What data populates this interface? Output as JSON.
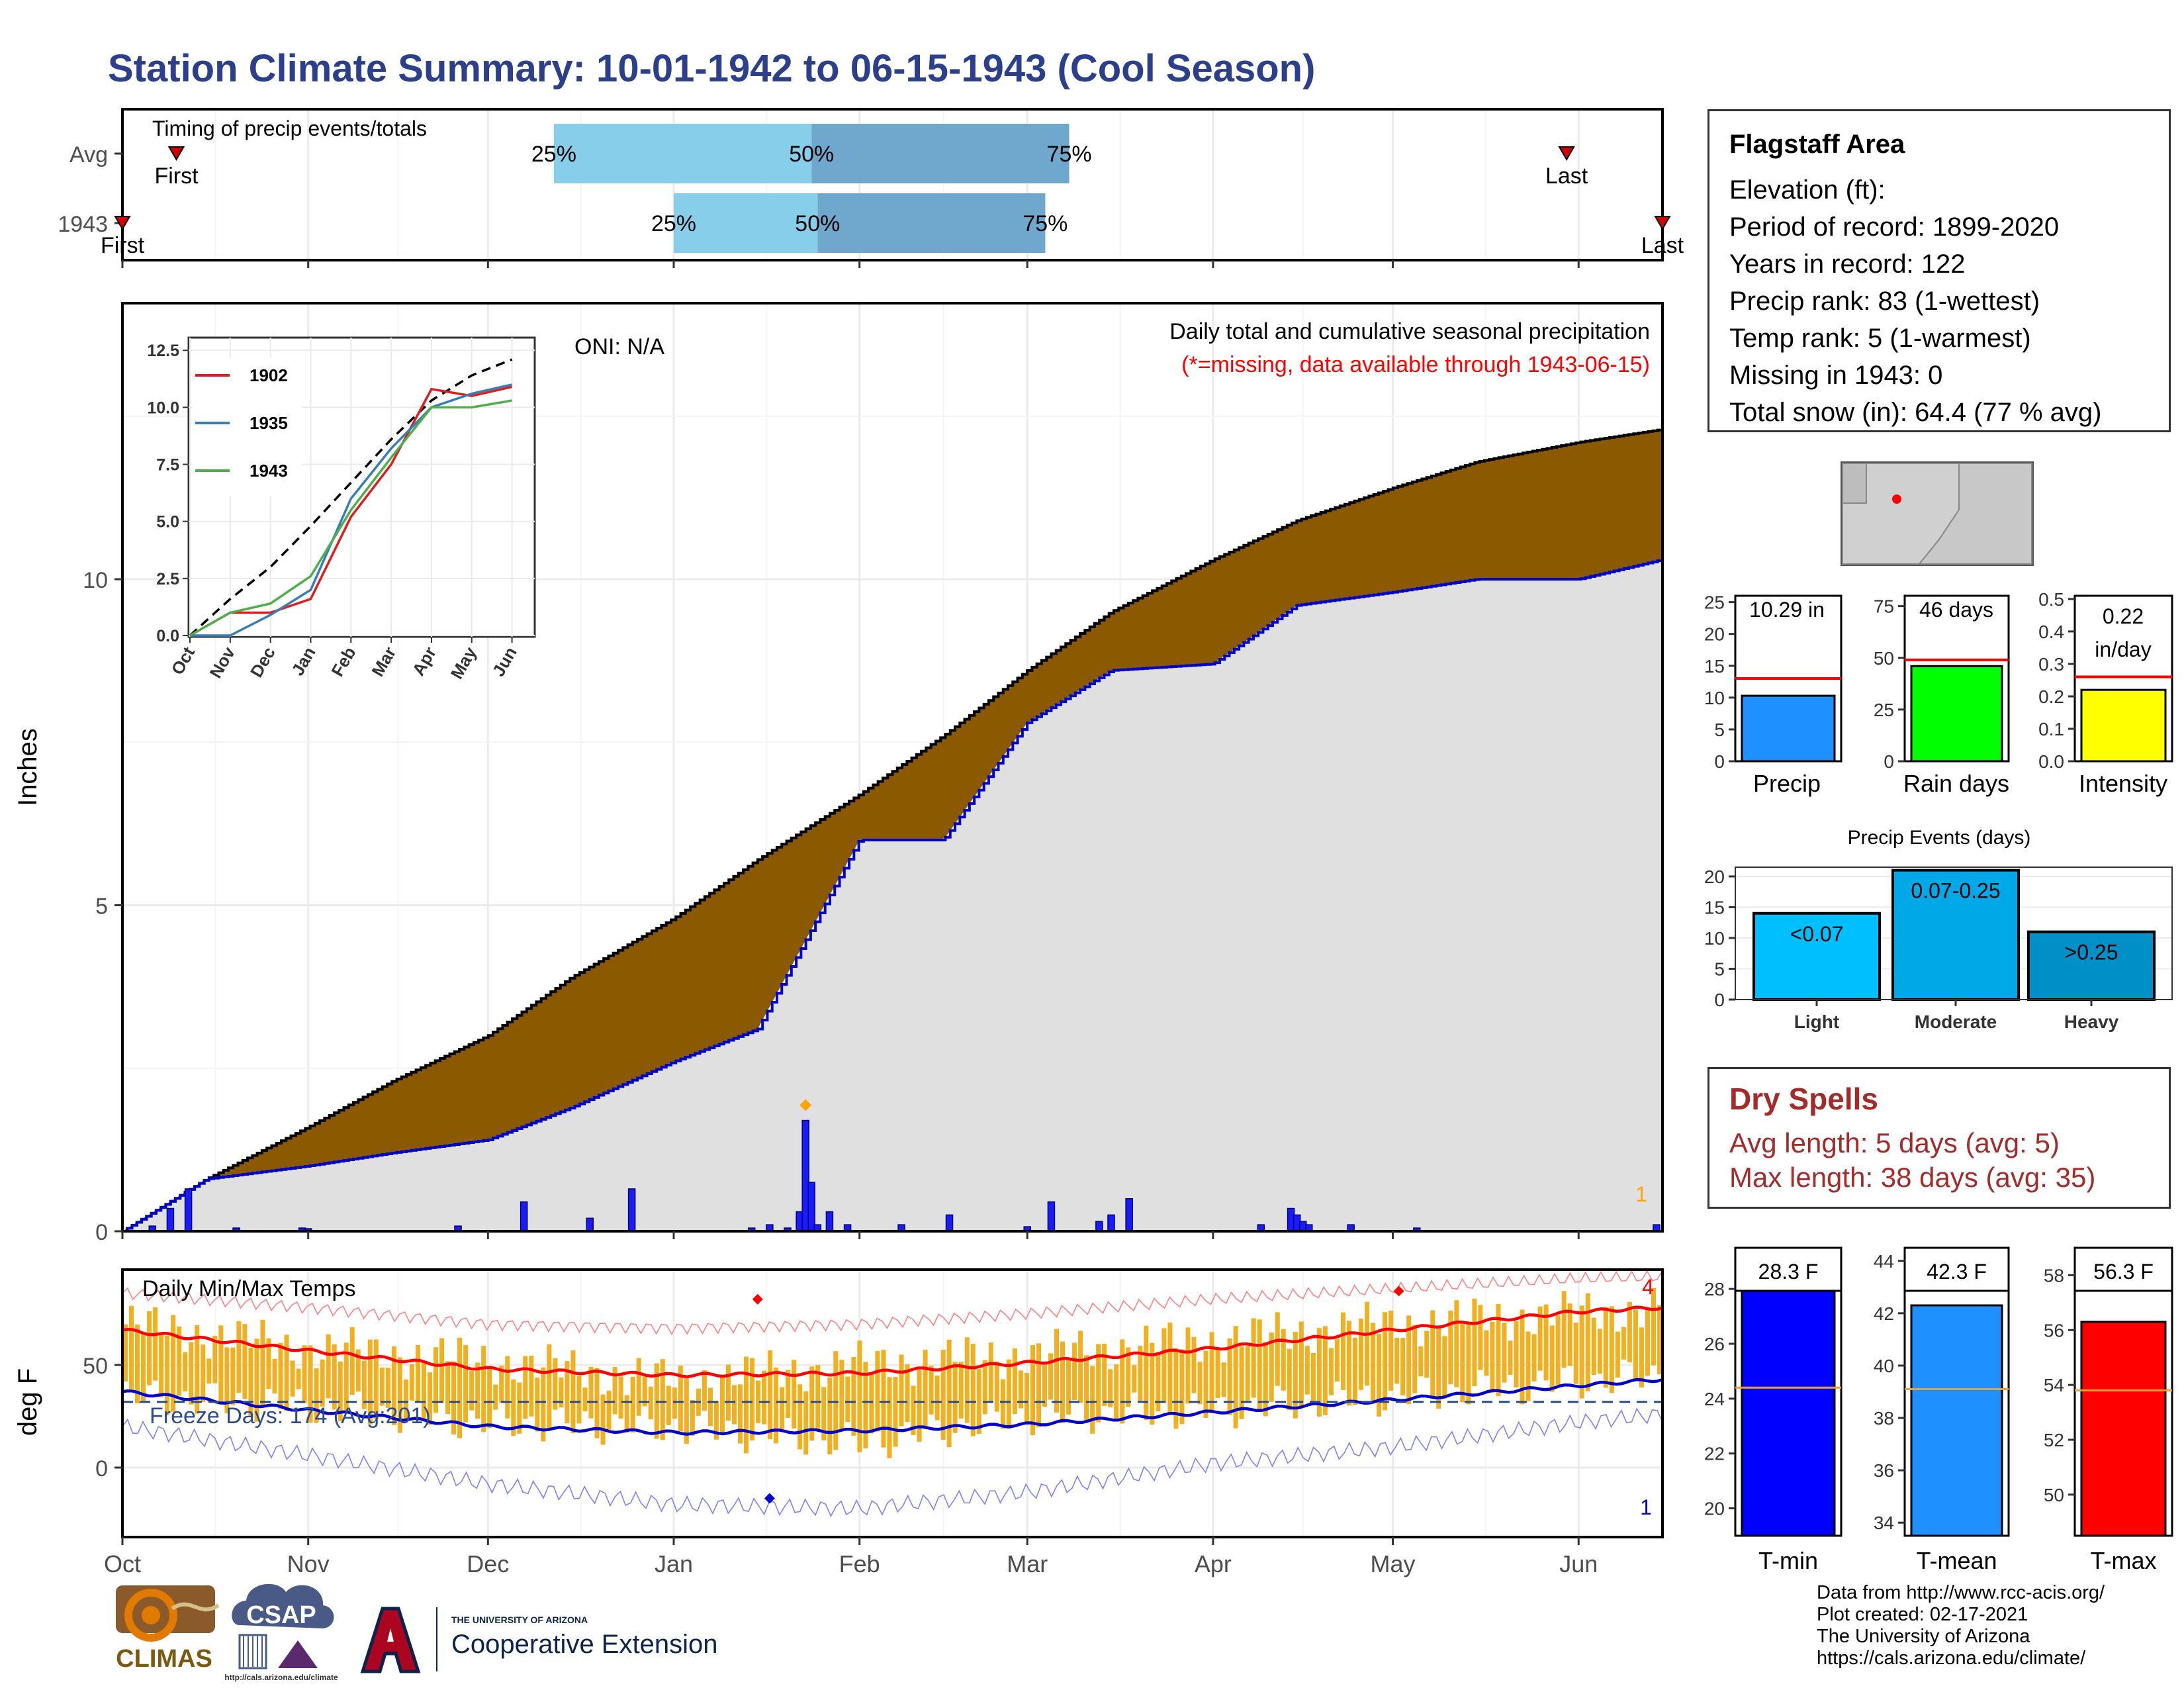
{
  "title": "Station Climate Summary: 10-01-1942 to 06-15-1943 (Cool Season)",
  "timing_panel": {
    "label": "Timing of precip events/totals",
    "rows": [
      {
        "name": "Avg",
        "first_label": "First",
        "last_label": "Last",
        "p25": "25%",
        "p50": "50%",
        "p75": "75%"
      },
      {
        "name": "1943",
        "first_label": "First",
        "last_label": "Last",
        "p25": "25%",
        "p50": "50%",
        "p75": "75%"
      }
    ]
  },
  "precip_panel": {
    "ylabel": "Inches",
    "heading": "Daily total and cumulative seasonal precipitation",
    "note": "(*=missing, data available through 1943-06-15)",
    "oni": "ONI: N/A",
    "corner_count": "1",
    "y_ticks": [
      "0",
      "5",
      "10"
    ]
  },
  "inset": {
    "y_ticks": [
      "0.0",
      "2.5",
      "5.0",
      "7.5",
      "10.0",
      "12.5"
    ],
    "x_ticks": [
      "Oct",
      "Nov",
      "Dec",
      "Jan",
      "Feb",
      "Mar",
      "Apr",
      "May",
      "Jun"
    ],
    "legend": [
      "1902",
      "1935",
      "1943"
    ]
  },
  "temp_panel": {
    "label": "Daily Min/Max Temps",
    "ylabel": "deg F",
    "freeze": "Freeze Days: 174 (Avg:201)",
    "max_count": "4",
    "min_count": "1",
    "y_ticks": [
      "0",
      "50"
    ]
  },
  "x_axis": [
    "Oct",
    "Nov",
    "Dec",
    "Jan",
    "Feb",
    "Mar",
    "Apr",
    "May",
    "Jun"
  ],
  "station": {
    "name": "Flagstaff Area",
    "lines": [
      "Elevation (ft):",
      "Period of record: 1899-2020",
      "Years in record: 122",
      "Precip rank: 83 (1-wettest)",
      "Temp rank: 5 (1-warmest)",
      "Missing in 1943: 0",
      "Total snow (in): 64.4 (77 % avg)"
    ]
  },
  "season_bars": {
    "precip": {
      "label": "Precip",
      "value_label": "10.29 in",
      "ticks": [
        "0",
        "5",
        "10",
        "15",
        "20",
        "25"
      ]
    },
    "rain_days": {
      "label": "Rain days",
      "value_label": "46 days",
      "ticks": [
        "0",
        "25",
        "50",
        "75"
      ]
    },
    "intensity": {
      "label": "Intensity",
      "value_label_1": "0.22",
      "value_label_2": "in/day",
      "ticks": [
        "0.0",
        "0.1",
        "0.2",
        "0.3",
        "0.4",
        "0.5"
      ]
    }
  },
  "events": {
    "title": "Precip Events (days)",
    "ticks": [
      "0",
      "5",
      "10",
      "15",
      "20"
    ],
    "categories": [
      "Light",
      "Moderate",
      "Heavy"
    ],
    "bar_labels": [
      "<0.07",
      "0.07-0.25",
      ">0.25"
    ]
  },
  "dry_spells": {
    "title": "Dry Spells",
    "avg": "Avg length: 5 days (avg: 5)",
    "max": "Max length: 38 days (avg: 35)"
  },
  "temp_bars": {
    "tmin": {
      "label": "T-min",
      "value_label": "28.3 F",
      "ticks": [
        "20",
        "22",
        "24",
        "26",
        "28"
      ]
    },
    "tmean": {
      "label": "T-mean",
      "value_label": "42.3 F",
      "ticks": [
        "34",
        "36",
        "38",
        "40",
        "42",
        "44"
      ]
    },
    "tmax": {
      "label": "T-max",
      "value_label": "56.3 F",
      "ticks": [
        "50",
        "52",
        "54",
        "56",
        "58"
      ]
    }
  },
  "credits": [
    "Data from http://www.rcc-acis.org/",
    "Plot created: 02-17-2021",
    "The University of Arizona",
    "https://cals.arizona.edu/climate/"
  ],
  "logos": {
    "climas": "CLIMAS",
    "csap": "CSAP",
    "csap_url": "http://cals.arizona.edu/climate",
    "ua_small": "THE UNIVERSITY OF ARIZONA",
    "ua_big": "Cooperative Extension"
  },
  "colors": {
    "title": "#2b3f8c",
    "cumulative_fill": "#8b5a00",
    "avg_fill": "#e0e0e0",
    "precip_line": "#0000cc",
    "tmax_line": "#ff0000",
    "tmin_line": "#0000cc",
    "temp_bars": "#f0b020",
    "q_light": "#87ceeb",
    "q_dark": "#6fa8cc",
    "precip_bar": "#1e90ff",
    "rain_bar": "#00ff00",
    "intensity_bar": "#ffff00",
    "events_light": "#00bfff",
    "events_mod": "#00a8e8",
    "events_heavy": "#0090c8",
    "dry": "#a52a2a"
  },
  "chart_data": [
    {
      "type": "bar",
      "name": "timing",
      "categories": [
        "Avg",
        "1943"
      ],
      "series": [
        {
          "name": "First",
          "values": [
            "1942-10-10",
            "1942-10-01"
          ]
        },
        {
          "name": "25%",
          "values": [
            "1942-12-12",
            "1943-01-01"
          ]
        },
        {
          "name": "50%",
          "values": [
            "1943-01-24",
            "1943-01-25"
          ]
        },
        {
          "name": "75%",
          "values": [
            "1943-03-08",
            "1943-03-04"
          ]
        },
        {
          "name": "Last",
          "values": [
            "1943-05-30",
            "1943-06-15"
          ]
        }
      ]
    },
    {
      "type": "area",
      "name": "cumulative_precip",
      "ylabel": "Inches",
      "ylim": [
        0,
        14
      ],
      "x_dates": [
        "1942-10-01",
        "1942-10-15",
        "1942-11-01",
        "1942-11-15",
        "1942-12-01",
        "1942-12-15",
        "1943-01-01",
        "1943-01-15",
        "1943-02-01",
        "1943-02-15",
        "1943-03-01",
        "1943-03-15",
        "1943-04-01",
        "1943-04-15",
        "1943-05-01",
        "1943-05-15",
        "1943-06-01",
        "1943-06-15"
      ],
      "series": [
        {
          "name": "avg cumulative",
          "values": [
            0.0,
            0.8,
            1.6,
            2.3,
            3.0,
            3.9,
            4.8,
            5.7,
            6.7,
            7.6,
            8.6,
            9.5,
            10.3,
            10.9,
            11.4,
            11.8,
            12.1,
            12.3
          ]
        },
        {
          "name": "1943 cumulative",
          "values": [
            0.0,
            0.8,
            1.0,
            1.2,
            1.4,
            1.9,
            2.6,
            3.1,
            6.0,
            6.0,
            7.8,
            8.6,
            8.7,
            9.6,
            9.8,
            10.0,
            10.0,
            10.3
          ]
        }
      ]
    },
    {
      "type": "bar",
      "name": "daily_precip",
      "ylabel": "Inches",
      "x": [
        "1942-10-06",
        "1942-10-09",
        "1942-10-12",
        "1942-10-20",
        "1942-10-31",
        "1942-11-01",
        "1942-11-26",
        "1942-12-07",
        "1942-12-18",
        "1942-12-25",
        "1943-01-14",
        "1943-01-17",
        "1943-01-20",
        "1943-01-22",
        "1943-01-23",
        "1943-01-24",
        "1943-01-25",
        "1943-01-27",
        "1943-01-30",
        "1943-02-08",
        "1943-02-16",
        "1943-03-01",
        "1943-03-05",
        "1943-03-13",
        "1943-03-15",
        "1943-03-18",
        "1943-04-09",
        "1943-04-14",
        "1943-04-15",
        "1943-04-16",
        "1943-04-17",
        "1943-04-24",
        "1943-05-05",
        "1943-06-14"
      ],
      "values": [
        0.08,
        0.35,
        0.65,
        0.05,
        0.05,
        0.04,
        0.08,
        0.45,
        0.2,
        0.65,
        0.05,
        0.1,
        0.05,
        0.3,
        1.7,
        0.75,
        0.1,
        0.3,
        0.1,
        0.1,
        0.25,
        0.07,
        0.45,
        0.15,
        0.25,
        0.5,
        0.1,
        0.35,
        0.25,
        0.15,
        0.1,
        0.1,
        0.05,
        0.1
      ]
    },
    {
      "type": "line",
      "name": "inset_cumulative",
      "x": [
        "Oct",
        "Nov",
        "Dec",
        "Jan",
        "Feb",
        "Mar",
        "Apr",
        "May",
        "Jun"
      ],
      "ylim": [
        0,
        13
      ],
      "series": [
        {
          "name": "avg",
          "values": [
            0.0,
            1.6,
            3.0,
            4.8,
            6.7,
            8.6,
            10.3,
            11.4,
            12.1
          ]
        },
        {
          "name": "1902",
          "values": [
            0.0,
            1.0,
            1.0,
            1.6,
            5.2,
            7.5,
            10.8,
            10.5,
            10.9
          ]
        },
        {
          "name": "1935",
          "values": [
            0.0,
            0.0,
            0.9,
            2.0,
            6.0,
            8.2,
            10.0,
            10.6,
            11.0
          ]
        },
        {
          "name": "1943",
          "values": [
            0.0,
            1.0,
            1.4,
            2.6,
            5.5,
            7.8,
            10.0,
            10.0,
            10.3
          ]
        }
      ]
    },
    {
      "type": "line",
      "name": "daily_temps",
      "ylabel": "deg F",
      "ylim": [
        -30,
        95
      ],
      "x_dates": [
        "1942-10-01",
        "1942-11-01",
        "1942-12-01",
        "1943-01-01",
        "1943-02-01",
        "1943-03-01",
        "1943-04-01",
        "1943-05-01",
        "1943-06-01",
        "1943-06-15"
      ],
      "series": [
        {
          "name": "avg max",
          "values": [
            67,
            57,
            48,
            45,
            46,
            51,
            58,
            67,
            76,
            78
          ]
        },
        {
          "name": "avg min",
          "values": [
            37,
            28,
            20,
            17,
            18,
            21,
            27,
            33,
            40,
            43
          ]
        },
        {
          "name": "record max",
          "values": [
            85,
            78,
            70,
            68,
            70,
            75,
            82,
            87,
            92,
            93
          ]
        },
        {
          "name": "record min",
          "values": [
            20,
            6,
            -8,
            -18,
            -20,
            -12,
            2,
            10,
            22,
            26
          ]
        },
        {
          "name": "1943 daily max",
          "values": [
            70,
            58,
            52,
            42,
            50,
            55,
            62,
            70,
            75,
            78
          ]
        },
        {
          "name": "1943 daily min",
          "values": [
            35,
            30,
            22,
            20,
            12,
            25,
            28,
            35,
            42,
            45
          ]
        }
      ]
    },
    {
      "type": "bar",
      "name": "season_totals",
      "categories": [
        "Precip",
        "Rain days",
        "Intensity"
      ],
      "series": [
        {
          "name": "1943",
          "values": [
            10.29,
            46,
            0.22
          ]
        },
        {
          "name": "avg",
          "values": [
            13.0,
            49,
            0.26
          ]
        }
      ],
      "ylim": [
        [
          0,
          25
        ],
        [
          0,
          80
        ],
        [
          0,
          0.5
        ]
      ]
    },
    {
      "type": "bar",
      "name": "precip_events",
      "title": "Precip Events (days)",
      "categories": [
        "Light",
        "Moderate",
        "Heavy"
      ],
      "values": [
        14,
        21,
        11
      ],
      "ylim": [
        0,
        21
      ]
    },
    {
      "type": "bar",
      "name": "temp_means",
      "categories": [
        "T-min",
        "T-mean",
        "T-max"
      ],
      "series": [
        {
          "name": "1943",
          "values": [
            28.3,
            42.3,
            56.3
          ]
        },
        {
          "name": "avg",
          "values": [
            24.4,
            39.1,
            53.8
          ]
        }
      ],
      "ylim": [
        [
          19,
          29.5
        ],
        [
          33.5,
          44.5
        ],
        [
          48.5,
          59
        ]
      ]
    }
  ]
}
